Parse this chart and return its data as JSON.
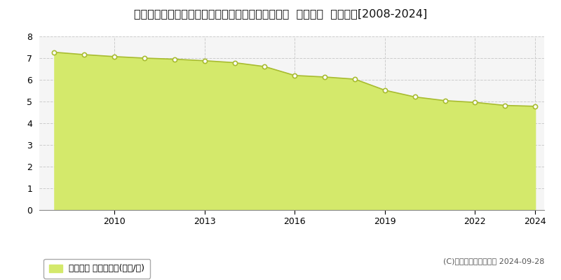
{
  "title": "愛知県北設楽郡東栄町大字本郷字西万場４２番４外  基準地価  地価推移[2008-2024]",
  "years": [
    2008,
    2009,
    2010,
    2011,
    2012,
    2013,
    2014,
    2015,
    2016,
    2017,
    2018,
    2019,
    2020,
    2021,
    2022,
    2023,
    2024
  ],
  "values": [
    7.27,
    7.16,
    7.07,
    7.0,
    6.95,
    6.88,
    6.79,
    6.61,
    6.2,
    6.13,
    6.03,
    5.52,
    5.21,
    5.04,
    4.96,
    4.82,
    4.78
  ],
  "fill_color": "#d4e96b",
  "line_color": "#a8bc30",
  "marker_color": "#ffffff",
  "marker_edge_color": "#a8bc30",
  "bg_color": "#ffffff",
  "plot_bg_color": "#f5f5f5",
  "grid_color": "#cccccc",
  "ylim": [
    0,
    8
  ],
  "yticks": [
    0,
    1,
    2,
    3,
    4,
    5,
    6,
    7,
    8
  ],
  "xtick_years": [
    2010,
    2013,
    2016,
    2019,
    2022,
    2024
  ],
  "legend_label": "基準地価 平均坪単価(万円/坪)",
  "legend_color": "#d4e96b",
  "copyright_text": "(C)土地価格ドットコム 2024-09-28",
  "title_fontsize": 11.5,
  "tick_fontsize": 9,
  "legend_fontsize": 9,
  "copyright_fontsize": 8
}
